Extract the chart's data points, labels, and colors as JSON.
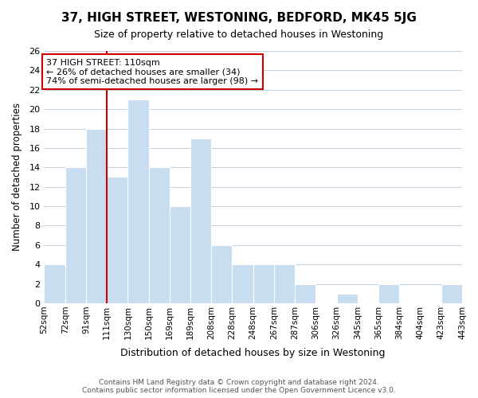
{
  "title": "37, HIGH STREET, WESTONING, BEDFORD, MK45 5JG",
  "subtitle": "Size of property relative to detached houses in Westoning",
  "xlabel": "Distribution of detached houses by size in Westoning",
  "ylabel": "Number of detached properties",
  "tick_labels": [
    "52sqm",
    "72sqm",
    "91sqm",
    "111sqm",
    "130sqm",
    "150sqm",
    "169sqm",
    "189sqm",
    "208sqm",
    "228sqm",
    "248sqm",
    "267sqm",
    "287sqm",
    "306sqm",
    "326sqm",
    "345sqm",
    "365sqm",
    "384sqm",
    "404sqm",
    "423sqm",
    "443sqm"
  ],
  "values": [
    4,
    14,
    18,
    13,
    21,
    14,
    10,
    17,
    6,
    4,
    4,
    4,
    2,
    0,
    1,
    0,
    2,
    0,
    0,
    2
  ],
  "property_bin_index": 3,
  "bar_color": "#c9ddf0",
  "bar_edge_color": "#ffffff",
  "highlight_line_color": "#cc0000",
  "annotation_text": "37 HIGH STREET: 110sqm\n← 26% of detached houses are smaller (34)\n74% of semi-detached houses are larger (98) →",
  "annotation_box_color": "#ffffff",
  "annotation_box_edge": "#cc0000",
  "ylim": [
    0,
    26
  ],
  "yticks": [
    0,
    2,
    4,
    6,
    8,
    10,
    12,
    14,
    16,
    18,
    20,
    22,
    24,
    26
  ],
  "footer_line1": "Contains HM Land Registry data © Crown copyright and database right 2024.",
  "footer_line2": "Contains public sector information licensed under the Open Government Licence v3.0.",
  "background_color": "#ffffff",
  "grid_color": "#c0d0e0"
}
